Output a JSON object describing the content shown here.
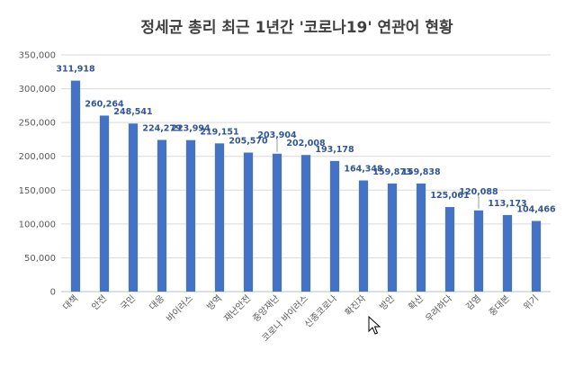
{
  "chart_data": {
    "type": "bar",
    "title": "정세균 총리 최근 1년간 '코로나19' 연관어 현황",
    "categories": [
      "대책",
      "안전",
      "국민",
      "대응",
      "바이러스",
      "방역",
      "재난안전",
      "중앙재난",
      "코로나 바이러스",
      "신종코로나",
      "확진자",
      "방안",
      "확산",
      "우려하다",
      "감염",
      "중대본",
      "위기"
    ],
    "values": [
      311918,
      260264,
      248541,
      224279,
      223994,
      219151,
      205570,
      203904,
      202008,
      193178,
      164348,
      159873,
      159838,
      125061,
      120088,
      113173,
      104466
    ],
    "data_labels": [
      "311,918",
      "260,264",
      "248,541",
      "224,279",
      "223,994",
      "219,151",
      "205,570",
      "203,904",
      "202,008",
      "193,178",
      "164,348",
      "159,873",
      "159,838",
      "125,061",
      "120,088",
      "113,173",
      "104,466"
    ],
    "yticks": [
      "0",
      "50,000",
      "100,000",
      "150,000",
      "200,000",
      "250,000",
      "300,000",
      "350,000"
    ],
    "ylim": [
      0,
      350000
    ],
    "grid": true,
    "legend": "none",
    "xlabel": "",
    "ylabel": "",
    "colors": {
      "bar": "#4472c4",
      "label": "#2f5597",
      "grid": "#d9d9d9",
      "title": "#404040"
    }
  },
  "cursor": {
    "icon": "mouse-pointer-icon"
  }
}
